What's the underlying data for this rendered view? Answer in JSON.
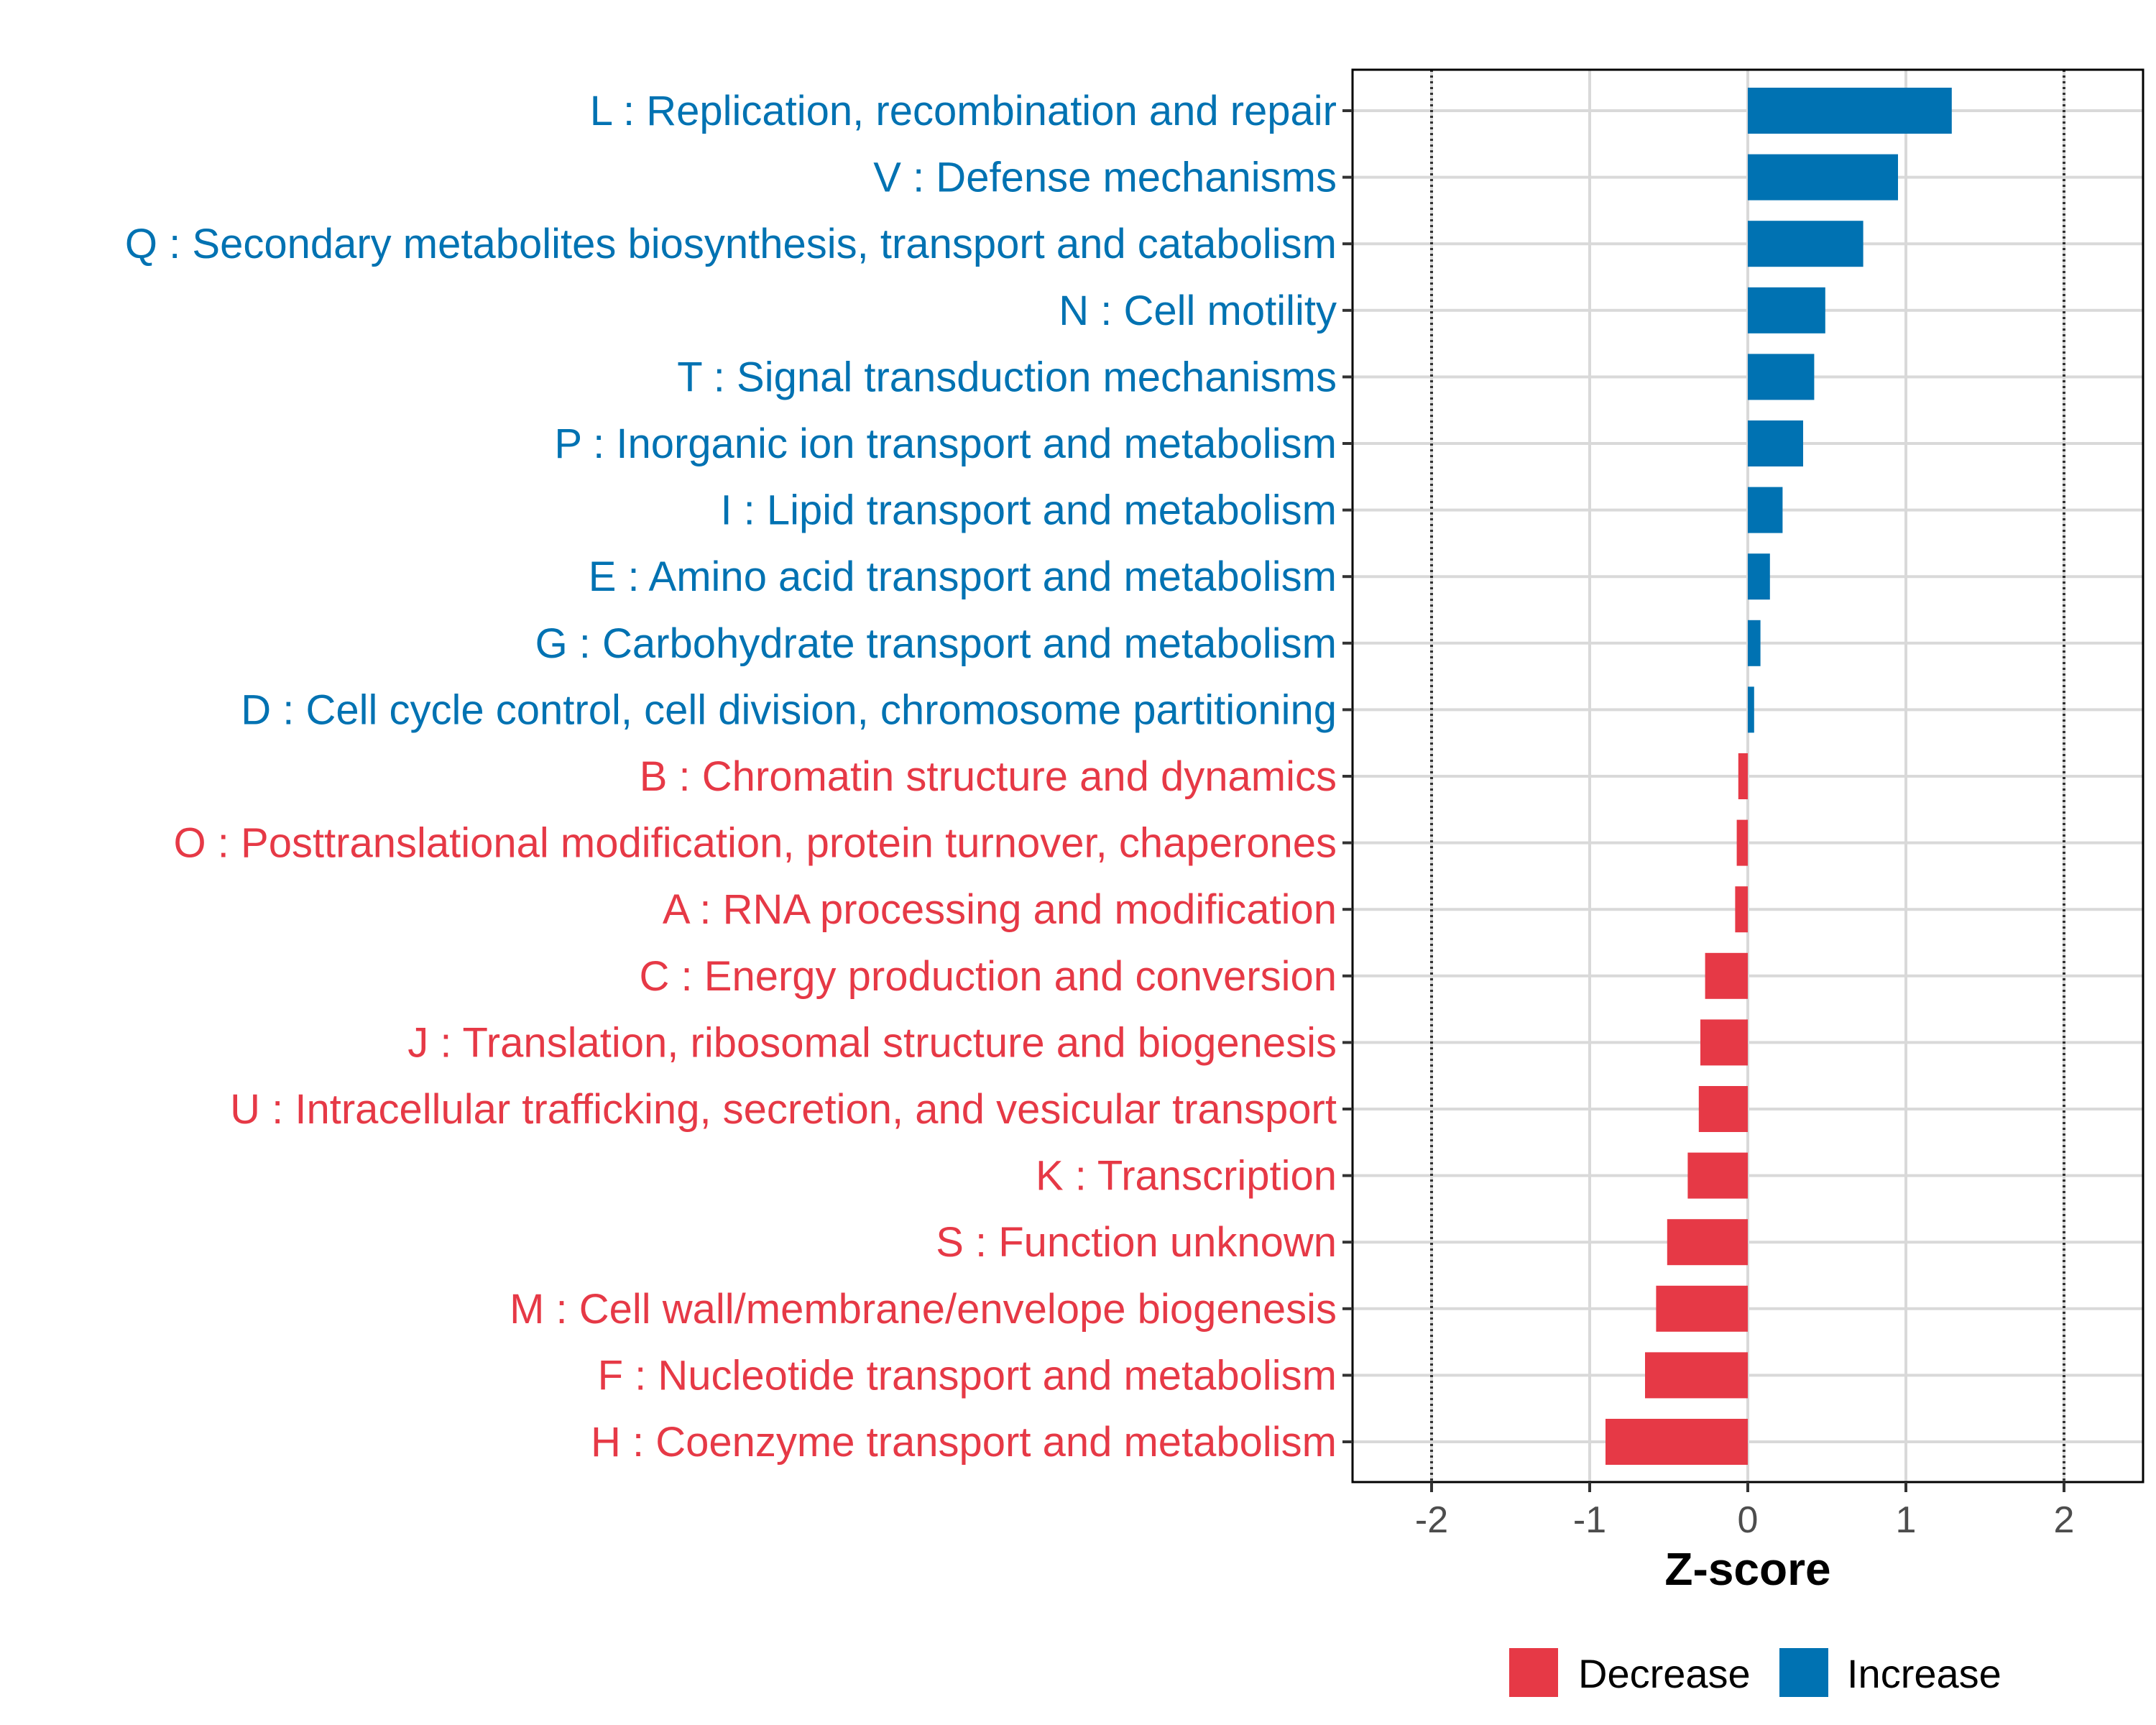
{
  "chart_data": {
    "type": "bar",
    "orientation": "horizontal",
    "xlabel": "Z-score",
    "xlim": [
      -2.5,
      2.5
    ],
    "xticks": [
      -2,
      -1,
      0,
      1,
      2
    ],
    "xtick_labels": [
      "-2",
      "-1",
      "0",
      "1",
      "2"
    ],
    "reference_lines": [
      -2,
      2
    ],
    "categories": [
      {
        "label": "L : Replication, recombination and repair",
        "value": 1.29,
        "group": "Increase"
      },
      {
        "label": "V : Defense mechanisms",
        "value": 0.95,
        "group": "Increase"
      },
      {
        "label": "Q : Secondary metabolites biosynthesis, transport and catabolism",
        "value": 0.73,
        "group": "Increase"
      },
      {
        "label": "N : Cell motility",
        "value": 0.49,
        "group": "Increase"
      },
      {
        "label": "T : Signal transduction mechanisms",
        "value": 0.42,
        "group": "Increase"
      },
      {
        "label": "P : Inorganic ion transport and metabolism",
        "value": 0.35,
        "group": "Increase"
      },
      {
        "label": "I : Lipid transport and metabolism",
        "value": 0.22,
        "group": "Increase"
      },
      {
        "label": "E : Amino acid transport and metabolism",
        "value": 0.14,
        "group": "Increase"
      },
      {
        "label": "G : Carbohydrate transport and metabolism",
        "value": 0.08,
        "group": "Increase"
      },
      {
        "label": "D : Cell cycle control, cell division, chromosome partitioning",
        "value": 0.04,
        "group": "Increase"
      },
      {
        "label": "B : Chromatin structure and dynamics",
        "value": -0.06,
        "group": "Decrease"
      },
      {
        "label": "O : Posttranslational modification, protein turnover, chaperones",
        "value": -0.07,
        "group": "Decrease"
      },
      {
        "label": "A : RNA processing and modification",
        "value": -0.08,
        "group": "Decrease"
      },
      {
        "label": "C : Energy production and conversion",
        "value": -0.27,
        "group": "Decrease"
      },
      {
        "label": "J : Translation, ribosomal structure and biogenesis",
        "value": -0.3,
        "group": "Decrease"
      },
      {
        "label": "U : Intracellular trafficking, secretion, and vesicular transport",
        "value": -0.31,
        "group": "Decrease"
      },
      {
        "label": "K : Transcription",
        "value": -0.38,
        "group": "Decrease"
      },
      {
        "label": "S : Function unknown",
        "value": -0.51,
        "group": "Decrease"
      },
      {
        "label": "M : Cell wall/membrane/envelope biogenesis",
        "value": -0.58,
        "group": "Decrease"
      },
      {
        "label": "F : Nucleotide transport and metabolism",
        "value": -0.65,
        "group": "Decrease"
      },
      {
        "label": "H : Coenzyme transport and metabolism",
        "value": -0.9,
        "group": "Decrease"
      }
    ],
    "legend": {
      "position": "bottom-right",
      "entries": [
        {
          "label": "Decrease",
          "color": "#E63946"
        },
        {
          "label": "Increase",
          "color": "#0072B2"
        }
      ]
    },
    "colors": {
      "Decrease": "#E63946",
      "Increase": "#0072B2",
      "grid": "#D9D9D9",
      "panel_border": "#000000",
      "reference_line": "#333333"
    }
  }
}
